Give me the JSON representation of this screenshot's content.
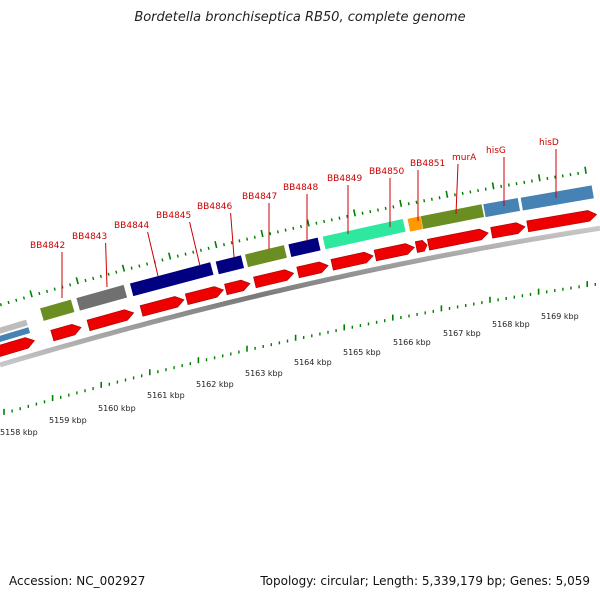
{
  "title": "Bordetella bronchiseptica RB50, complete genome",
  "footer": {
    "accession": "Accession: NC_002927",
    "summary": "Topology: circular; Length: 5,339,179 bp; Genes: 5,059"
  },
  "colors": {
    "red_cds": "#ee0000",
    "navy": "#000080",
    "olive": "#6b8e23",
    "gray": "#707070",
    "steel_blue": "#4682b4",
    "aqua_green": "#2ee8a0",
    "orange": "#ff9900",
    "label_red": "#cc0000",
    "tick_green": "#008000"
  },
  "gene_labels": [
    "BB4842",
    "BB4843",
    "BB4844",
    "BB4845",
    "BB4846",
    "BB4847",
    "BB4848",
    "BB4849",
    "BB4850",
    "BB4851",
    "murA",
    "hisG",
    "hisD"
  ],
  "kbp_ticks": [
    "5158 kbp",
    "5159 kbp",
    "5160 kbp",
    "5161 kbp",
    "5162 kbp",
    "5163 kbp",
    "5164 kbp",
    "5165 kbp",
    "5166 kbp",
    "5167 kbp",
    "5168 kbp",
    "5169 kbp"
  ]
}
